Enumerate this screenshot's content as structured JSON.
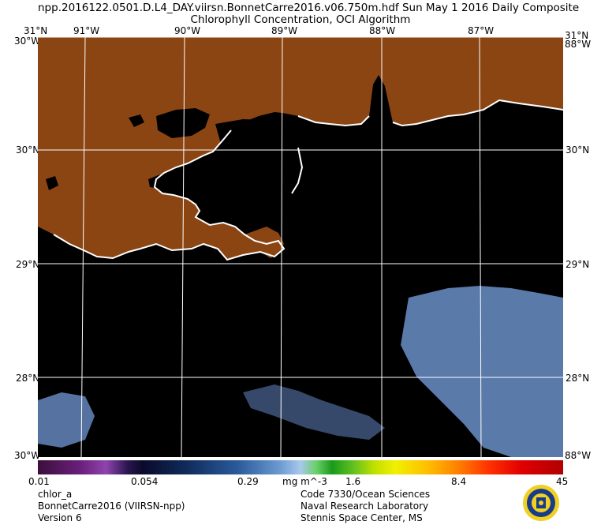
{
  "header": {
    "line1": "npp.2016122.0501.D.L4_DAY.viirsn.BonnetCarre2016.v06.750m.hdf     Sun May  1 2016 Daily Composite",
    "line2": "Chlorophyll Concentration, OCI Algorithm"
  },
  "axes": {
    "lon_top": [
      "91°W",
      "90°W",
      "89°W",
      "88°W",
      "87°W"
    ],
    "lat_left": [
      "31°N",
      "30°N",
      "29°N",
      "28°N"
    ],
    "lat_right": [
      "31°N",
      "30°N",
      "29°N",
      "28°N"
    ],
    "corner_top_left": "30°W",
    "corner_top_right": "88°W",
    "corner_bottom_left": "30°W",
    "corner_bottom_right": "88°W",
    "corner_top_left_over": "31°N",
    "corner_top_right_over": "31°N",
    "corner_bottom_left_over": "28°N",
    "corner_bottom_right_over": "88°W"
  },
  "colorbar": {
    "ticks": [
      "0.01",
      "0.054",
      "0.29",
      "mg m^-3",
      "1.6",
      "8.4",
      "45"
    ]
  },
  "footer": {
    "left": [
      "chlor_a",
      "BonnetCarre2016 (VIIRSN-npp)",
      "Version 6"
    ],
    "right": [
      "Code 7330/Ocean Sciences",
      "Naval Research Laboratory",
      "Stennis Space Center, MS"
    ]
  },
  "logo": {
    "name": "naval-research-laboratory-seal",
    "colors": [
      "#1a3a8a",
      "#f0d020"
    ]
  },
  "colors": {
    "land": "#8b4513",
    "water": "#000000",
    "chl_low": "#6a8fc8",
    "grid": "#ffffff"
  }
}
